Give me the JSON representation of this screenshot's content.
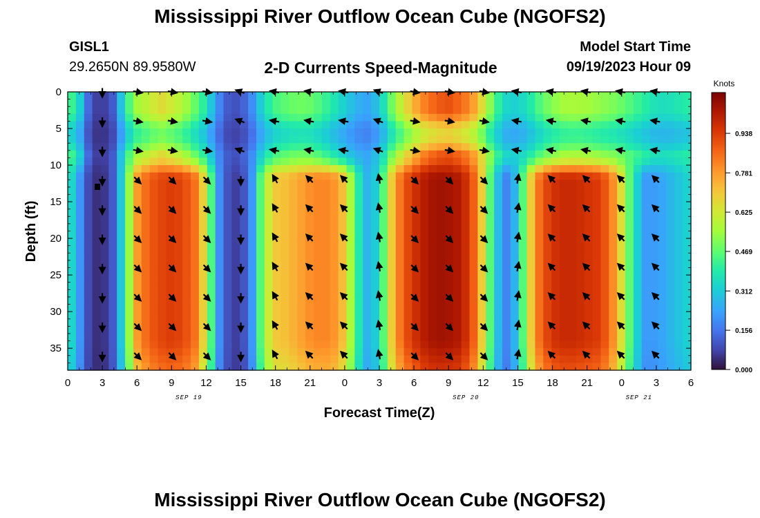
{
  "page": {
    "title": "Mississippi River Outflow Ocean Cube (NGOFS2)",
    "title_repeat": "Mississippi River Outflow Ocean Cube (NGOFS2)",
    "station": "GISL1",
    "coords": "29.2650N  89.9580W",
    "subtitle": "2-D Currents Speed-Magnitude",
    "model_start_label": "Model Start Time",
    "model_start_value": "09/19/2023 Hour 09"
  },
  "chart_data": {
    "type": "heatmap",
    "title": "2-D Currents Speed-Magnitude",
    "xlabel": "Forecast Time(Z)",
    "ylabel": "Depth (ft)",
    "x_ticks": [
      "0",
      "3",
      "6",
      "9",
      "12",
      "15",
      "18",
      "21",
      "0",
      "3",
      "6",
      "9",
      "12",
      "15",
      "18",
      "21",
      "0",
      "3",
      "6"
    ],
    "x_range_hours": [
      0,
      54
    ],
    "date_labels": [
      {
        "text": "SEP 19",
        "hour": 10.5
      },
      {
        "text": "SEP 20",
        "hour": 34.5
      },
      {
        "text": "SEP 21",
        "hour": 49.5
      }
    ],
    "y_ticks": [
      0,
      5,
      10,
      15,
      20,
      25,
      30,
      35
    ],
    "ylim": [
      0,
      38
    ],
    "y_inverted": true,
    "colorbar": {
      "label": "Knots",
      "ticks": [
        "0.000",
        "0.156",
        "0.312",
        "0.469",
        "0.625",
        "0.781",
        "0.938"
      ],
      "range": [
        0,
        1.1
      ]
    },
    "surface_speed_knots": [
      [
        0,
        0.47
      ],
      [
        1,
        0.34
      ],
      [
        2,
        0.08
      ],
      [
        3,
        0.06
      ],
      [
        4,
        0.12
      ],
      [
        5,
        0.4
      ],
      [
        6,
        0.55
      ],
      [
        7,
        0.6
      ],
      [
        8,
        0.66
      ],
      [
        9,
        0.62
      ],
      [
        10,
        0.57
      ],
      [
        11,
        0.48
      ],
      [
        12,
        0.38
      ],
      [
        13,
        0.2
      ],
      [
        14,
        0.1
      ],
      [
        15,
        0.1
      ],
      [
        16,
        0.2
      ],
      [
        17,
        0.36
      ],
      [
        18,
        0.44
      ],
      [
        19,
        0.47
      ],
      [
        20,
        0.49
      ],
      [
        21,
        0.48
      ],
      [
        22,
        0.44
      ],
      [
        23,
        0.38
      ],
      [
        24,
        0.32
      ],
      [
        25,
        0.26
      ],
      [
        26,
        0.24
      ],
      [
        27,
        0.3
      ],
      [
        28,
        0.48
      ],
      [
        29,
        0.62
      ],
      [
        30,
        0.74
      ],
      [
        31,
        0.83
      ],
      [
        32,
        0.88
      ],
      [
        33,
        0.9
      ],
      [
        34,
        0.86
      ],
      [
        35,
        0.8
      ],
      [
        36,
        0.64
      ],
      [
        37,
        0.44
      ],
      [
        38,
        0.34
      ],
      [
        39,
        0.32
      ],
      [
        40,
        0.38
      ],
      [
        41,
        0.46
      ],
      [
        42,
        0.52
      ],
      [
        43,
        0.55
      ],
      [
        44,
        0.56
      ],
      [
        45,
        0.55
      ],
      [
        46,
        0.53
      ],
      [
        47,
        0.51
      ],
      [
        48,
        0.48
      ],
      [
        49,
        0.44
      ],
      [
        50,
        0.4
      ],
      [
        51,
        0.36
      ],
      [
        52,
        0.36
      ],
      [
        53,
        0.38
      ],
      [
        54,
        0.4
      ]
    ],
    "deep_speed_knots": [
      [
        0,
        0.4
      ],
      [
        1,
        0.22
      ],
      [
        2,
        0.05
      ],
      [
        3,
        0.04
      ],
      [
        4,
        0.12
      ],
      [
        5,
        0.42
      ],
      [
        6,
        0.78
      ],
      [
        7,
        0.88
      ],
      [
        8,
        0.92
      ],
      [
        9,
        0.94
      ],
      [
        10,
        0.92
      ],
      [
        11,
        0.85
      ],
      [
        12,
        0.62
      ],
      [
        13,
        0.22
      ],
      [
        14,
        0.08
      ],
      [
        15,
        0.06
      ],
      [
        16,
        0.22
      ],
      [
        17,
        0.56
      ],
      [
        18,
        0.7
      ],
      [
        19,
        0.72
      ],
      [
        20,
        0.76
      ],
      [
        21,
        0.8
      ],
      [
        22,
        0.82
      ],
      [
        23,
        0.8
      ],
      [
        24,
        0.7
      ],
      [
        25,
        0.42
      ],
      [
        26,
        0.26
      ],
      [
        27,
        0.34
      ],
      [
        28,
        0.68
      ],
      [
        29,
        0.88
      ],
      [
        30,
        0.96
      ],
      [
        31,
        1.02
      ],
      [
        32,
        1.05
      ],
      [
        33,
        1.04
      ],
      [
        34,
        1.02
      ],
      [
        35,
        0.92
      ],
      [
        36,
        0.66
      ],
      [
        37,
        0.32
      ],
      [
        38,
        0.18
      ],
      [
        39,
        0.3
      ],
      [
        40,
        0.66
      ],
      [
        41,
        0.88
      ],
      [
        42,
        0.96
      ],
      [
        43,
        0.98
      ],
      [
        44,
        0.98
      ],
      [
        45,
        0.96
      ],
      [
        46,
        0.94
      ],
      [
        47,
        0.86
      ],
      [
        48,
        0.64
      ],
      [
        49,
        0.38
      ],
      [
        50,
        0.22
      ],
      [
        51,
        0.22
      ],
      [
        52,
        0.26
      ],
      [
        53,
        0.3
      ],
      [
        54,
        0.34
      ]
    ],
    "arrow_hours": [
      3,
      6,
      9,
      12,
      15,
      18,
      21,
      24,
      27,
      30,
      33,
      36,
      39,
      42,
      45,
      48,
      51
    ],
    "arrow_depths_ft": [
      0,
      4,
      8,
      12,
      16,
      20,
      24,
      28,
      32,
      36
    ],
    "surface_arrow_angle_deg": [
      90,
      10,
      10,
      10,
      -160,
      -170,
      -170,
      -170,
      -160,
      10,
      10,
      10,
      -170,
      -170,
      -170,
      -170,
      -170
    ],
    "deep_arrow_angle_deg": [
      90,
      45,
      45,
      45,
      90,
      -120,
      -135,
      -135,
      -100,
      45,
      45,
      45,
      -80,
      -135,
      -135,
      -135,
      -135
    ]
  }
}
